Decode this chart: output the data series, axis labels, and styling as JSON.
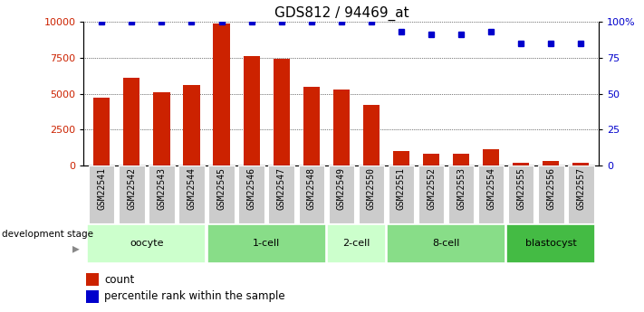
{
  "title": "GDS812 / 94469_at",
  "samples": [
    "GSM22541",
    "GSM22542",
    "GSM22543",
    "GSM22544",
    "GSM22545",
    "GSM22546",
    "GSM22547",
    "GSM22548",
    "GSM22549",
    "GSM22550",
    "GSM22551",
    "GSM22552",
    "GSM22553",
    "GSM22554",
    "GSM22555",
    "GSM22556",
    "GSM22557"
  ],
  "counts": [
    4700,
    6100,
    5100,
    5600,
    9900,
    7600,
    7400,
    5500,
    5300,
    4200,
    1000,
    800,
    800,
    1150,
    200,
    300,
    200
  ],
  "percentile": [
    100,
    100,
    100,
    100,
    100,
    100,
    100,
    100,
    100,
    100,
    93,
    91,
    91,
    93,
    85,
    85,
    85
  ],
  "bar_color": "#cc2200",
  "dot_color": "#0000cc",
  "ylim_left": [
    0,
    10000
  ],
  "ylim_right": [
    0,
    100
  ],
  "yticks_left": [
    0,
    2500,
    5000,
    7500,
    10000
  ],
  "yticks_right": [
    0,
    25,
    50,
    75,
    100
  ],
  "ytick_labels_right": [
    "0",
    "25",
    "50",
    "75",
    "100%"
  ],
  "groups": [
    {
      "label": "oocyte",
      "start": 0,
      "end": 3,
      "color": "#ccffcc"
    },
    {
      "label": "1-cell",
      "start": 4,
      "end": 7,
      "color": "#88dd88"
    },
    {
      "label": "2-cell",
      "start": 8,
      "end": 9,
      "color": "#ccffcc"
    },
    {
      "label": "8-cell",
      "start": 10,
      "end": 13,
      "color": "#88dd88"
    },
    {
      "label": "blastocyst",
      "start": 14,
      "end": 16,
      "color": "#44bb44"
    }
  ],
  "dev_stage_label": "development stage",
  "legend_count_label": "count",
  "legend_pct_label": "percentile rank within the sample",
  "background_color": "#ffffff",
  "title_fontsize": 11,
  "axis_fontsize": 8,
  "label_fontsize": 7
}
